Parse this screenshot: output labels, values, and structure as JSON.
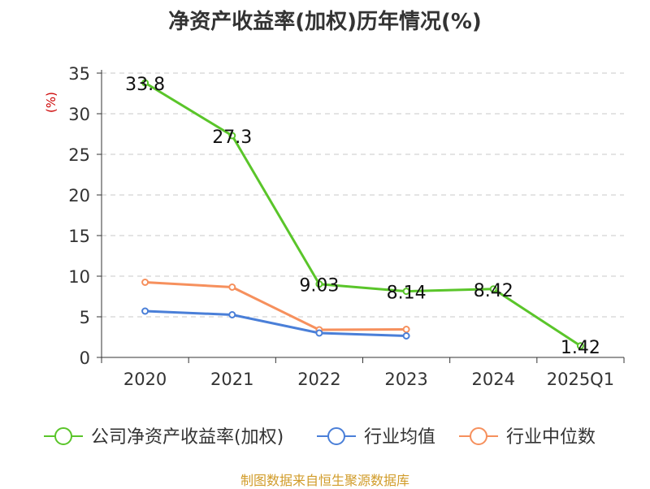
{
  "colors": {
    "roe": "#5ac52a",
    "industry_avg": "#4a7fd8",
    "industry_median": "#f6905d",
    "grid": "#c8c8c8",
    "axis": "#333333",
    "title": "#333333",
    "unit": "#cc0000",
    "source": "#d19c2a"
  },
  "source_note": "制图数据来自恒生聚源数据库",
  "chart_data": {
    "type": "line",
    "title": "净资产收益率(加权)历年情况(%)",
    "ylabel": "(%)",
    "xlabel": "",
    "categories": [
      "2020",
      "2021",
      "2022",
      "2023",
      "2024",
      "2025Q1"
    ],
    "ylim": [
      0,
      35
    ],
    "yticks": [
      0,
      5,
      10,
      15,
      20,
      25,
      30,
      35
    ],
    "grid": "horizontal-dashed",
    "legend_position": "bottom",
    "series": [
      {
        "name": "公司净资产收益率(加权)",
        "color_key": "roe",
        "values": [
          33.8,
          27.3,
          9.03,
          8.14,
          8.42,
          1.42
        ],
        "labels": [
          "33.8",
          "27.3",
          "9.03",
          "8.14",
          "8.42",
          "1.42"
        ]
      },
      {
        "name": "行业均值",
        "color_key": "industry_avg",
        "values": [
          5.7,
          5.25,
          3.0,
          2.65,
          null,
          null
        ]
      },
      {
        "name": "行业中位数",
        "color_key": "industry_median",
        "values": [
          9.25,
          8.65,
          3.4,
          3.45,
          null,
          null
        ]
      }
    ]
  }
}
